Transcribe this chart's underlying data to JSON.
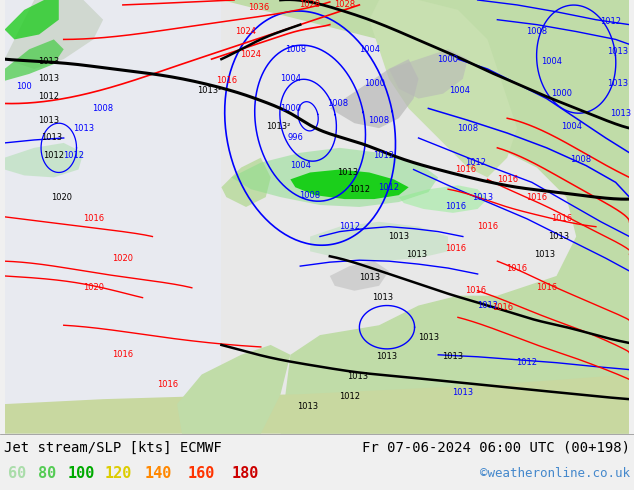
{
  "title_left": "Jet stream/SLP [kts] ECMWF",
  "title_right": "Fr 07-06-2024 06:00 UTC (00+198)",
  "credit": "©weatheronline.co.uk",
  "legend_values": [
    "60",
    "80",
    "100",
    "120",
    "140",
    "160",
    "180"
  ],
  "legend_colors": [
    "#aaddaa",
    "#55cc55",
    "#00aa00",
    "#ddcc00",
    "#ff8800",
    "#ff3300",
    "#cc0000"
  ],
  "bg_color": "#f0f0f0",
  "bar_bg": "#e8e8e8",
  "title_fontsize": 10,
  "credit_fontsize": 9,
  "legend_fontsize": 10,
  "fig_width": 6.34,
  "fig_height": 4.9,
  "dpi": 100,
  "ocean_color": "#e8e8ee",
  "land_color": "#c8e8c0",
  "land_green": "#a8d898",
  "jet_green_dark": "#00bb00",
  "jet_green_light": "#88dd88",
  "gray_terrain": "#b8b8b8"
}
